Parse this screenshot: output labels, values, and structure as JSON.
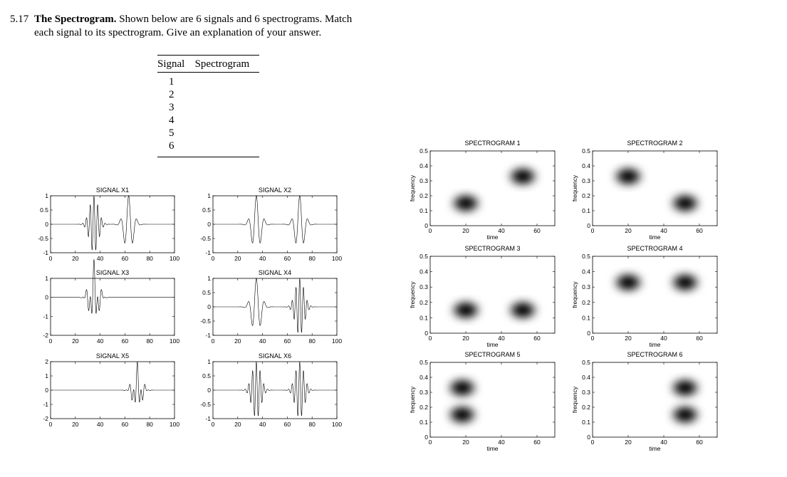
{
  "problem": {
    "number": "5.17",
    "title": "The Spectrogram.",
    "text_line1": "Shown below are 6 signals and 6 spectrograms. Match",
    "text_line2": "each signal to its spectrogram. Give an explanation of your answer."
  },
  "match_table": {
    "headers": [
      "Signal",
      "Spectrogram"
    ],
    "rows": [
      "1",
      "2",
      "3",
      "4",
      "5",
      "6"
    ]
  },
  "chart_data": [
    {
      "type": "line",
      "title": "SIGNAL X1",
      "xlim": [
        0,
        100
      ],
      "ylim": [
        -1,
        1
      ],
      "xticks": [
        "0",
        "20",
        "40",
        "60",
        "80",
        "100"
      ],
      "yticks": [
        "1",
        "0.5",
        "0",
        "-0.5",
        "-1"
      ],
      "bursts": [
        {
          "t": 35,
          "f": 0.33
        },
        {
          "t": 63,
          "f": 0.15
        }
      ]
    },
    {
      "type": "line",
      "title": "SIGNAL X2",
      "xlim": [
        0,
        100
      ],
      "ylim": [
        -1,
        1
      ],
      "xticks": [
        "0",
        "20",
        "40",
        "60",
        "80",
        "100"
      ],
      "yticks": [
        "1",
        "0.5",
        "0",
        "-0.5",
        "-1"
      ],
      "bursts": [
        {
          "t": 35,
          "f": 0.15
        },
        {
          "t": 70,
          "f": 0.15
        }
      ]
    },
    {
      "type": "line",
      "title": "SIGNAL X3",
      "xlim": [
        0,
        100
      ],
      "ylim": [
        -2,
        1
      ],
      "xticks": [
        "0",
        "20",
        "40",
        "60",
        "80",
        "100"
      ],
      "yticks": [
        "1",
        "0",
        "-1",
        "-2"
      ],
      "bursts": [
        {
          "t": 35,
          "f": 0.15
        },
        {
          "t": 35,
          "f": 0.33
        }
      ]
    },
    {
      "type": "line",
      "title": "SIGNAL X4",
      "xlim": [
        0,
        100
      ],
      "ylim": [
        -1,
        1
      ],
      "xticks": [
        "0",
        "20",
        "40",
        "60",
        "80",
        "100"
      ],
      "yticks": [
        "1",
        "0.5",
        "0",
        "-0.5",
        "-1"
      ],
      "bursts": [
        {
          "t": 35,
          "f": 0.15
        },
        {
          "t": 70,
          "f": 0.33
        }
      ]
    },
    {
      "type": "line",
      "title": "SIGNAL X5",
      "xlim": [
        0,
        100
      ],
      "ylim": [
        -2,
        2
      ],
      "xticks": [
        "0",
        "20",
        "40",
        "60",
        "80",
        "100"
      ],
      "yticks": [
        "2",
        "1",
        "0",
        "-1",
        "-2"
      ],
      "bursts": [
        {
          "t": 70,
          "f": 0.15
        },
        {
          "t": 70,
          "f": 0.33
        }
      ]
    },
    {
      "type": "line",
      "title": "SIGNAL X6",
      "xlim": [
        0,
        100
      ],
      "ylim": [
        -1,
        1
      ],
      "xticks": [
        "0",
        "20",
        "40",
        "60",
        "80",
        "100"
      ],
      "yticks": [
        "1",
        "0.5",
        "0",
        "-0.5",
        "-1"
      ],
      "bursts": [
        {
          "t": 35,
          "f": 0.33
        },
        {
          "t": 70,
          "f": 0.33
        }
      ]
    },
    {
      "type": "heatmap",
      "title": "SPECTROGRAM 1",
      "xlabel": "time",
      "ylabel": "frequency",
      "xlim": [
        0,
        70
      ],
      "ylim": [
        0,
        0.5
      ],
      "xticks": [
        "0",
        "20",
        "40",
        "60"
      ],
      "yticks": [
        "0",
        "0.1",
        "0.2",
        "0.3",
        "0.4",
        "0.5"
      ],
      "blobs": [
        {
          "t": 20,
          "f": 0.15
        },
        {
          "t": 52,
          "f": 0.33
        }
      ]
    },
    {
      "type": "heatmap",
      "title": "SPECTROGRAM 2",
      "xlabel": "time",
      "ylabel": "frequency",
      "xlim": [
        0,
        70
      ],
      "ylim": [
        0,
        0.5
      ],
      "xticks": [
        "0",
        "20",
        "40",
        "60"
      ],
      "yticks": [
        "0",
        "0.1",
        "0.2",
        "0.3",
        "0.4",
        "0.5"
      ],
      "blobs": [
        {
          "t": 20,
          "f": 0.33
        },
        {
          "t": 52,
          "f": 0.15
        }
      ]
    },
    {
      "type": "heatmap",
      "title": "SPECTROGRAM 3",
      "xlabel": "time",
      "ylabel": "frequency",
      "xlim": [
        0,
        70
      ],
      "ylim": [
        0,
        0.5
      ],
      "xticks": [
        "0",
        "20",
        "40",
        "60"
      ],
      "yticks": [
        "0",
        "0.1",
        "0.2",
        "0.3",
        "0.4",
        "0.5"
      ],
      "blobs": [
        {
          "t": 20,
          "f": 0.15
        },
        {
          "t": 52,
          "f": 0.15
        }
      ]
    },
    {
      "type": "heatmap",
      "title": "SPECTROGRAM 4",
      "xlabel": "time",
      "ylabel": "frequency",
      "xlim": [
        0,
        70
      ],
      "ylim": [
        0,
        0.5
      ],
      "xticks": [
        "0",
        "20",
        "40",
        "60"
      ],
      "yticks": [
        "0",
        "0.1",
        "0.2",
        "0.3",
        "0.4",
        "0.5"
      ],
      "blobs": [
        {
          "t": 20,
          "f": 0.33
        },
        {
          "t": 52,
          "f": 0.33
        }
      ]
    },
    {
      "type": "heatmap",
      "title": "SPECTROGRAM 5",
      "xlabel": "time",
      "ylabel": "frequency",
      "xlim": [
        0,
        70
      ],
      "ylim": [
        0,
        0.5
      ],
      "xticks": [
        "0",
        "20",
        "40",
        "60"
      ],
      "yticks": [
        "0",
        "0.1",
        "0.2",
        "0.3",
        "0.4",
        "0.5"
      ],
      "blobs": [
        {
          "t": 18,
          "f": 0.15
        },
        {
          "t": 18,
          "f": 0.33
        }
      ]
    },
    {
      "type": "heatmap",
      "title": "SPECTROGRAM 6",
      "xlabel": "time",
      "ylabel": "frequency",
      "xlim": [
        0,
        70
      ],
      "ylim": [
        0,
        0.5
      ],
      "xticks": [
        "0",
        "20",
        "40",
        "60"
      ],
      "yticks": [
        "0",
        "0.1",
        "0.2",
        "0.3",
        "0.4",
        "0.5"
      ],
      "blobs": [
        {
          "t": 52,
          "f": 0.15
        },
        {
          "t": 52,
          "f": 0.33
        }
      ]
    }
  ]
}
